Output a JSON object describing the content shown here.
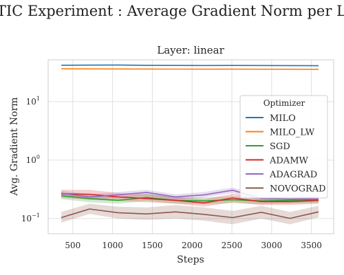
{
  "figure_title": "TIC Experiment : Average Gradient Norm per Layer ove",
  "chart_data": {
    "type": "line",
    "title": "Layer: linear",
    "xlabel": "Steps",
    "ylabel": "Avg. Gradient Norm",
    "yscale": "log",
    "xlim": [
      190,
      3780
    ],
    "ylim": [
      0.055,
      52
    ],
    "x_ticks": [
      500,
      1000,
      1500,
      2000,
      2500,
      3000,
      3500
    ],
    "y_ticks": [
      {
        "value": 0.1,
        "base": "10",
        "exp": "−1"
      },
      {
        "value": 1,
        "base": "10",
        "exp": "0"
      },
      {
        "value": 10,
        "base": "10",
        "exp": "1"
      }
    ],
    "grid": true,
    "legend": {
      "title": "Optimizer",
      "placement": "right"
    },
    "x": [
      355,
      710,
      1070,
      1430,
      1790,
      2150,
      2510,
      2870,
      3230,
      3590
    ],
    "series": [
      {
        "name": "MILO",
        "color": "#1f77b4",
        "values": [
          42.0,
          42.2,
          42.3,
          41.8,
          41.6,
          41.5,
          41.6,
          41.5,
          41.4,
          41.2
        ],
        "lower": [
          41.5,
          41.7,
          41.8,
          41.3,
          41.1,
          41.0,
          41.1,
          41.0,
          40.9,
          40.7
        ],
        "upper": [
          42.5,
          42.7,
          42.8,
          42.3,
          42.1,
          42.0,
          42.1,
          42.0,
          41.9,
          41.7
        ]
      },
      {
        "name": "MILO_LW",
        "color": "#ff7f0e",
        "values": [
          36.5,
          36.4,
          36.3,
          36.2,
          36.1,
          36.0,
          36.0,
          35.9,
          35.9,
          35.8
        ],
        "lower": [
          36.0,
          35.9,
          35.8,
          35.7,
          35.6,
          35.5,
          35.5,
          35.4,
          35.4,
          35.3
        ],
        "upper": [
          37.0,
          36.9,
          36.8,
          36.7,
          36.6,
          36.5,
          36.5,
          36.4,
          36.4,
          36.3
        ]
      },
      {
        "name": "SGD",
        "color": "#2ca02c",
        "values": [
          0.245,
          0.22,
          0.205,
          0.23,
          0.205,
          0.2,
          0.21,
          0.2,
          0.205,
          0.21
        ],
        "lower": [
          0.215,
          0.19,
          0.18,
          0.2,
          0.18,
          0.175,
          0.185,
          0.175,
          0.18,
          0.185
        ],
        "upper": [
          0.28,
          0.25,
          0.235,
          0.265,
          0.235,
          0.23,
          0.24,
          0.23,
          0.235,
          0.24
        ]
      },
      {
        "name": "ADAMW",
        "color": "#d62728",
        "values": [
          0.265,
          0.26,
          0.235,
          0.22,
          0.205,
          0.185,
          0.225,
          0.195,
          0.195,
          0.205
        ],
        "lower": [
          0.225,
          0.21,
          0.2,
          0.19,
          0.18,
          0.16,
          0.19,
          0.17,
          0.17,
          0.18
        ],
        "upper": [
          0.31,
          0.31,
          0.275,
          0.26,
          0.235,
          0.215,
          0.265,
          0.225,
          0.225,
          0.235
        ]
      },
      {
        "name": "ADAGRAD",
        "color": "#9467bd",
        "values": [
          0.27,
          0.235,
          0.255,
          0.28,
          0.235,
          0.255,
          0.305,
          0.22,
          0.215,
          0.22
        ],
        "lower": [
          0.245,
          0.21,
          0.23,
          0.25,
          0.21,
          0.23,
          0.275,
          0.195,
          0.19,
          0.195
        ],
        "upper": [
          0.3,
          0.26,
          0.285,
          0.31,
          0.26,
          0.285,
          0.34,
          0.245,
          0.24,
          0.245
        ]
      },
      {
        "name": "NOVOGRAD",
        "color": "#8c564b",
        "values": [
          0.104,
          0.146,
          0.126,
          0.12,
          0.13,
          0.118,
          0.104,
          0.128,
          0.101,
          0.13
        ],
        "lower": [
          0.085,
          0.12,
          0.1,
          0.095,
          0.1,
          0.092,
          0.08,
          0.1,
          0.08,
          0.105
        ],
        "upper": [
          0.13,
          0.18,
          0.16,
          0.155,
          0.17,
          0.155,
          0.135,
          0.165,
          0.13,
          0.165
        ]
      }
    ]
  }
}
